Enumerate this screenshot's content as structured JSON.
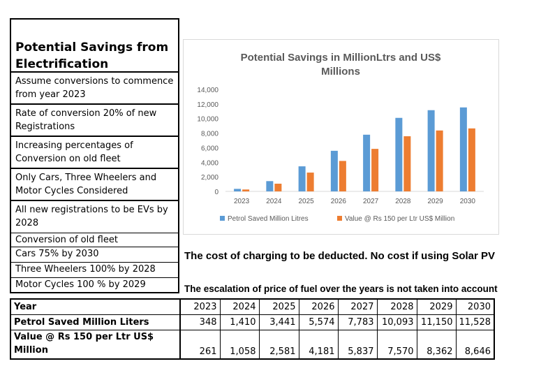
{
  "left_panel": {
    "title": "Potential Savings from Electrification",
    "items": [
      "Assume conversions to commence from year 2023",
      "Rate of conversion 20% of new Registrations",
      "Increasing percentages of Conversion on old fleet",
      "Only Cars, Three Wheelers and Motor Cycles Considered",
      "All new registrations to be  EVs by 2028",
      "Conversion of old fleet",
      "Cars  75% by 2030",
      "Three Wheelers  100% by 2028",
      "Motor Cycles  100 % by 2029"
    ]
  },
  "notes": {
    "charging": "The cost of charging to be deducted.  No cost if using Solar PV",
    "escalation": "The escalation of price of fuel over the years is not taken into account"
  },
  "table": {
    "header_label": "Year",
    "years": [
      "2023",
      "2024",
      "2025",
      "2026",
      "2027",
      "2028",
      "2029",
      "2030"
    ],
    "rows": [
      {
        "label": "Petrol  Saved  Million Liters",
        "values": [
          "348",
          "1,410",
          "3,441",
          "5,574",
          "7,783",
          "10,093",
          "11,150",
          "11,528"
        ]
      },
      {
        "label": "Value @ Rs 150 per Ltr  US$ Million",
        "values": [
          "261",
          "1,058",
          "2,581",
          "4,181",
          "5,837",
          "7,570",
          "8,362",
          "8,646"
        ]
      }
    ]
  },
  "chart_data": {
    "type": "bar",
    "title": "Potential Savings in MillionLtrs and US$ Millions",
    "categories": [
      "2023",
      "2024",
      "2025",
      "2026",
      "2027",
      "2028",
      "2029",
      "2030"
    ],
    "series": [
      {
        "name": "Petrol  Saved  Million Litres",
        "color": "#5b9bd5",
        "values": [
          348,
          1410,
          3441,
          5574,
          7783,
          10093,
          11150,
          11528
        ]
      },
      {
        "name": "Value @ Rs 150 per Ltr  US$ Million",
        "color": "#ed7d31",
        "values": [
          261,
          1058,
          2581,
          4181,
          5837,
          7570,
          8362,
          8646
        ]
      }
    ],
    "ylim": [
      0,
      14000
    ],
    "yticks": [
      "0",
      "2,000",
      "4,000",
      "6,000",
      "8,000",
      "10,000",
      "12,000",
      "14,000"
    ],
    "grid": false,
    "legend": "bottom"
  }
}
